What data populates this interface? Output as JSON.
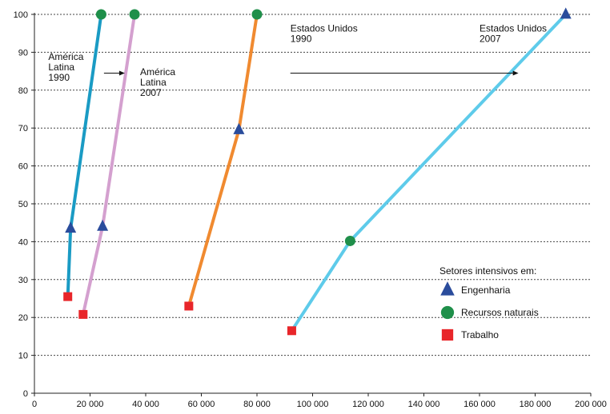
{
  "chart_data": {
    "type": "line",
    "xlim": [
      0,
      200000
    ],
    "ylim": [
      0,
      100
    ],
    "x_ticks": [
      0,
      20000,
      40000,
      60000,
      80000,
      100000,
      120000,
      140000,
      160000,
      180000,
      200000
    ],
    "x_tick_labels": [
      "0",
      "20 000",
      "40 000",
      "60 000",
      "80 000",
      "100 000",
      "120 000",
      "140 000",
      "160 000",
      "180 000",
      "200 000"
    ],
    "y_ticks": [
      0,
      10,
      20,
      30,
      40,
      50,
      60,
      70,
      80,
      90,
      100
    ],
    "y_tick_labels": [
      "0",
      "10",
      "20",
      "30",
      "40",
      "50",
      "60",
      "70",
      "80",
      "90",
      "100"
    ],
    "grid": "horizontal-dotted",
    "series": [
      {
        "color": "#1a9bc4",
        "points": [
          {
            "x": 12000,
            "y": 25.5,
            "marker": "square"
          },
          {
            "x": 13000,
            "y": 43.5,
            "marker": "triangle"
          },
          {
            "x": 24000,
            "y": 100,
            "marker": "circle"
          }
        ]
      },
      {
        "color": "#d4a0cf",
        "points": [
          {
            "x": 17500,
            "y": 20.8,
            "marker": "square"
          },
          {
            "x": 24500,
            "y": 44,
            "marker": "triangle"
          },
          {
            "x": 36000,
            "y": 100,
            "marker": "circle"
          }
        ]
      },
      {
        "color": "#f08a30",
        "points": [
          {
            "x": 55500,
            "y": 23,
            "marker": "square"
          },
          {
            "x": 73500,
            "y": 69.5,
            "marker": "triangle"
          },
          {
            "x": 80000,
            "y": 100,
            "marker": "circle"
          }
        ]
      },
      {
        "color": "#5ecbea",
        "points": [
          {
            "x": 92500,
            "y": 16.5,
            "marker": "square"
          },
          {
            "x": 113500,
            "y": 40.2,
            "marker": "circle"
          },
          {
            "x": 191000,
            "y": 100,
            "marker": "triangle"
          }
        ]
      }
    ],
    "annotations": [
      {
        "lines": [
          "América",
          "Latina",
          "1990"
        ],
        "x": 5000,
        "y": 88
      },
      {
        "lines": [
          "América",
          "Latina",
          "2007"
        ],
        "x": 38000,
        "y": 84
      },
      {
        "lines": [
          "Estados Unidos",
          "1990"
        ],
        "x": 92000,
        "y": 95.5
      },
      {
        "lines": [
          "Estados Unidos",
          "2007"
        ],
        "x": 160000,
        "y": 95.5
      }
    ],
    "arrows": [
      {
        "x1": 25000,
        "x2": 32500,
        "y": 84.5
      },
      {
        "x1": 92000,
        "x2": 174000,
        "y": 84.5
      }
    ],
    "legend": {
      "title": "Setores intensivos em:",
      "placement": "bottom-right",
      "items": [
        {
          "label": "Engenharia",
          "marker": "triangle",
          "color": "#2a4c9c"
        },
        {
          "label": "Recursos naturais",
          "marker": "circle",
          "color": "#1f8f4a"
        },
        {
          "label": "Trabalho",
          "marker": "square",
          "color": "#e8262a"
        }
      ]
    },
    "marker_colors": {
      "triangle": "#2a4c9c",
      "circle": "#1f8f4a",
      "square": "#e8262a"
    }
  }
}
